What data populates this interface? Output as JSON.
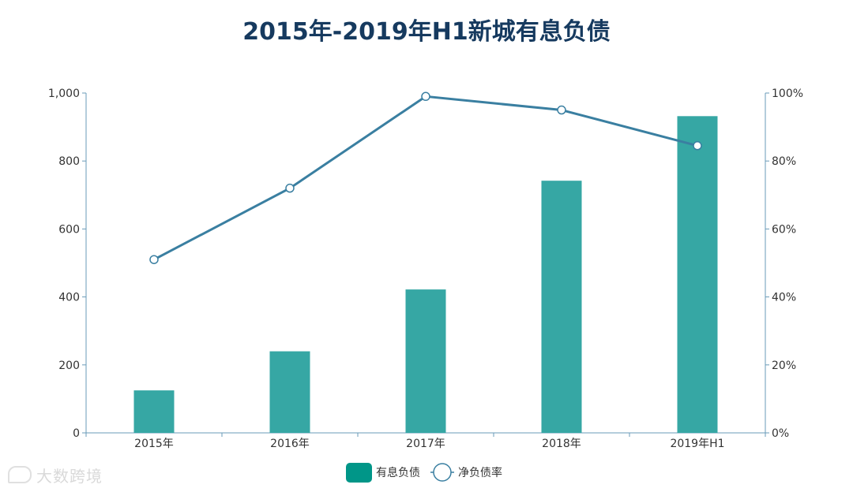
{
  "chart_data": {
    "type": "bar",
    "title": "2015年-2019年H1新城有息负债",
    "categories": [
      "2015年",
      "2016年",
      "2017年",
      "2018年",
      "2019年H1"
    ],
    "series": [
      {
        "name": "有息负债",
        "type": "bar",
        "axis": "left",
        "values": [
          125,
          240,
          422,
          742,
          932
        ],
        "color": "#36a7a4"
      },
      {
        "name": "净负债率",
        "type": "line",
        "axis": "right",
        "values": [
          51,
          72,
          99,
          95,
          84.5
        ],
        "color": "#3a7fa1"
      }
    ],
    "y_left": {
      "min": 0,
      "max": 1000,
      "ticks": [
        0,
        200,
        400,
        600,
        800,
        1000
      ],
      "tick_labels": [
        "0",
        "200",
        "400",
        "600",
        "800",
        "1,000"
      ]
    },
    "y_right": {
      "min": 0,
      "max": 100,
      "ticks": [
        0,
        20,
        40,
        60,
        80,
        100
      ],
      "tick_labels": [
        "0%",
        "20%",
        "40%",
        "60%",
        "80%",
        "100%"
      ]
    },
    "grid": false,
    "legend_position": "bottom-center"
  },
  "colors": {
    "title": "#163a5f",
    "axis": "#6a9bb8",
    "text": "#333333",
    "legend_bar": "#009688"
  },
  "watermark": "大数跨境"
}
